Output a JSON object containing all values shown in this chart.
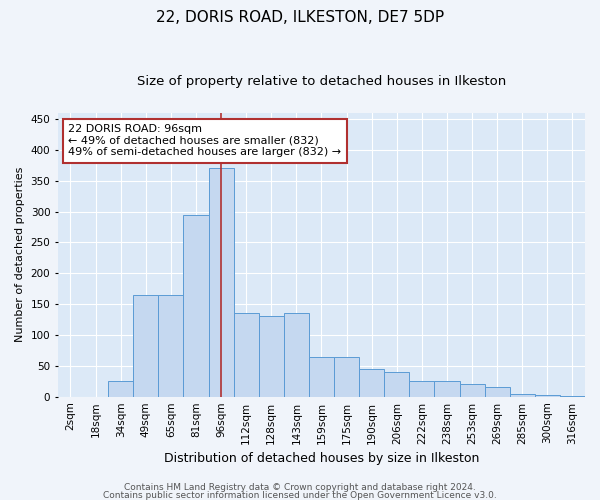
{
  "title1": "22, DORIS ROAD, ILKESTON, DE7 5DP",
  "title2": "Size of property relative to detached houses in Ilkeston",
  "xlabel": "Distribution of detached houses by size in Ilkeston",
  "ylabel": "Number of detached properties",
  "categories": [
    "2sqm",
    "18sqm",
    "34sqm",
    "49sqm",
    "65sqm",
    "81sqm",
    "96sqm",
    "112sqm",
    "128sqm",
    "143sqm",
    "159sqm",
    "175sqm",
    "190sqm",
    "206sqm",
    "222sqm",
    "238sqm",
    "253sqm",
    "269sqm",
    "285sqm",
    "300sqm",
    "316sqm"
  ],
  "values": [
    0,
    0,
    25,
    165,
    165,
    295,
    370,
    135,
    130,
    135,
    65,
    65,
    45,
    40,
    25,
    25,
    20,
    15,
    5,
    2,
    1
  ],
  "bar_color": "#c5d8f0",
  "bar_edge_color": "#5b9bd5",
  "vline_x_index": 6,
  "vline_color": "#b03030",
  "annotation_line1": "22 DORIS ROAD: 96sqm",
  "annotation_line2": "← 49% of detached houses are smaller (832)",
  "annotation_line3": "49% of semi-detached houses are larger (832) →",
  "annotation_box_edgecolor": "#b03030",
  "ylim": [
    0,
    460
  ],
  "yticks": [
    0,
    50,
    100,
    150,
    200,
    250,
    300,
    350,
    400,
    450
  ],
  "footer1": "Contains HM Land Registry data © Crown copyright and database right 2024.",
  "footer2": "Contains public sector information licensed under the Open Government Licence v3.0.",
  "fig_bg_color": "#f0f4fa",
  "ax_bg_color": "#dce9f7",
  "grid_color": "#ffffff",
  "title1_fontsize": 11,
  "title2_fontsize": 9.5,
  "xlabel_fontsize": 9,
  "ylabel_fontsize": 8,
  "tick_fontsize": 7.5,
  "annot_fontsize": 8,
  "footer_fontsize": 6.5
}
